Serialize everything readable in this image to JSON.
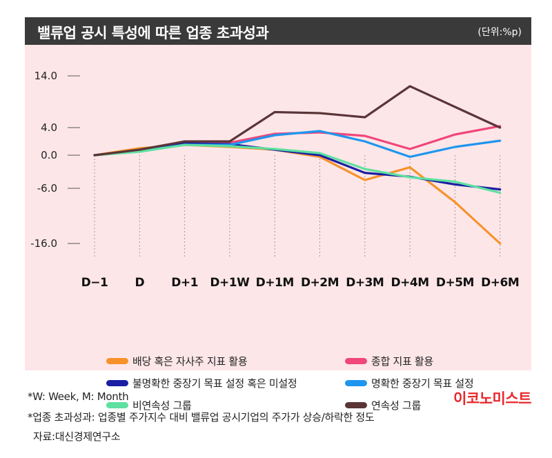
{
  "header": {
    "title": "밸류업 공시 특성에 따른 업종 초과성과",
    "unit": "(단위:%p)"
  },
  "chart_data": {
    "type": "line",
    "categories": [
      "D−1",
      "D",
      "D+1",
      "D+1W",
      "D+1M",
      "D+2M",
      "D+3M",
      "D+4M",
      "D+5M",
      "D+6M"
    ],
    "y_ticks": [
      14.0,
      4.0,
      0.0,
      -6.0,
      -16.0
    ],
    "y_tick_labels": [
      "14.0",
      "4.0",
      "0.0",
      "-6.0",
      "-16.0"
    ],
    "y_scale": "piecewise-linear",
    "ylim": [
      -16,
      14
    ],
    "grid": {
      "vertical_dotted": true
    },
    "series": [
      {
        "name": "배당 혹은 자사주 지표 활용",
        "color": "#f7922a",
        "values": [
          0.0,
          1.0,
          1.5,
          1.2,
          0.8,
          -0.3,
          -4.5,
          -2.2,
          -8.5,
          -16.0
        ]
      },
      {
        "name": "종합 지표 활용",
        "color": "#f0467a",
        "values": [
          0.0,
          0.6,
          1.8,
          1.8,
          3.1,
          3.3,
          2.8,
          0.9,
          3.0,
          4.3
        ]
      },
      {
        "name": "불명확한 중장기 목표 설정 혹은 미설정",
        "color": "#1b1ea3",
        "values": [
          0.0,
          0.6,
          1.7,
          1.6,
          0.8,
          0.0,
          -3.2,
          -3.9,
          -5.3,
          -6.2
        ]
      },
      {
        "name": "명확한 중장기 목표 설정",
        "color": "#1e96ee",
        "values": [
          0.0,
          0.6,
          1.5,
          1.5,
          2.9,
          3.5,
          2.0,
          -0.3,
          1.2,
          2.1
        ]
      },
      {
        "name": "비연속성 그룹",
        "color": "#5ee0a0",
        "values": [
          0.0,
          0.5,
          1.5,
          1.3,
          0.9,
          0.3,
          -2.5,
          -4.0,
          -4.8,
          -6.8
        ]
      },
      {
        "name": "연속성 그룹",
        "color": "#5a3538",
        "values": [
          0.0,
          0.8,
          2.0,
          2.0,
          7.0,
          6.8,
          6.0,
          12.0,
          8.0,
          4.0
        ]
      }
    ]
  },
  "legend": {
    "items": [
      {
        "label": "배당 혹은 자사주 지표 활용",
        "color": "#f7922a"
      },
      {
        "label": "종합 지표 활용",
        "color": "#f0467a"
      },
      {
        "label": "불명확한 중장기 목표 설정 혹은 미설정",
        "color": "#1b1ea3"
      },
      {
        "label": "명확한 중장기 목표 설정",
        "color": "#1e96ee"
      },
      {
        "label": "비연속성 그룹",
        "color": "#5ee0a0"
      },
      {
        "label": "연속성 그룹",
        "color": "#5a3538"
      }
    ]
  },
  "footer": {
    "note1": "*W: Week, M: Month",
    "note2": "*업종 초과성과: 업종별 주가지수 대비 밸류업 공시기업의 주가가 상승/하락한 정도",
    "source": "자료:대신경제연구소",
    "brand": "이코노미스트"
  }
}
